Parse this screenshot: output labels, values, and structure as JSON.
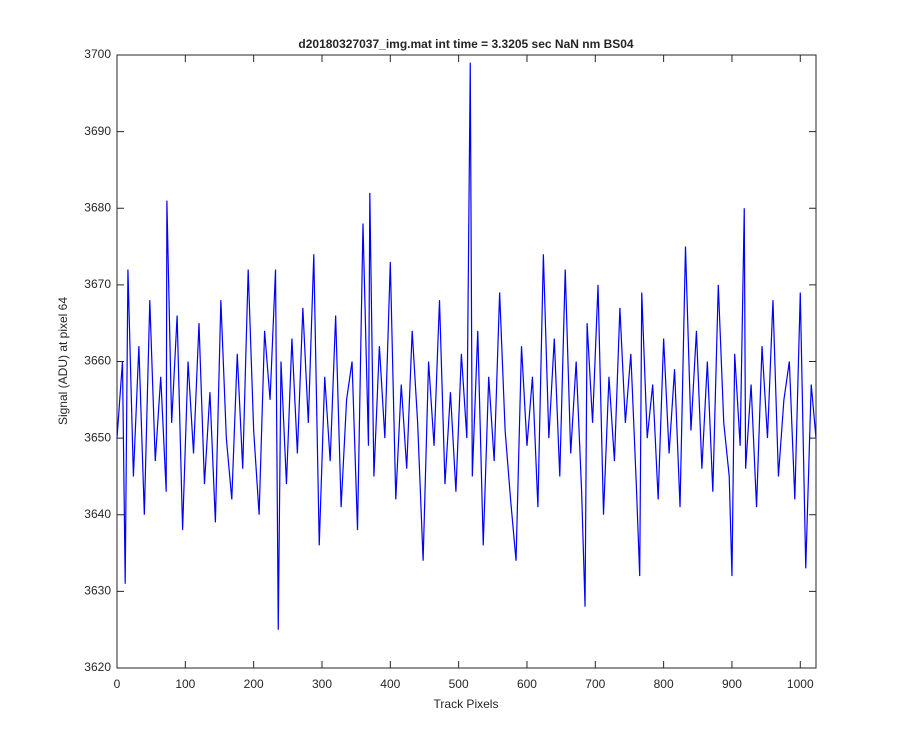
{
  "chart_data": {
    "type": "line",
    "title": "d20180327037_img.mat int time = 3.3205 sec  NaN nm BS04",
    "xlabel": "Track Pixels",
    "ylabel": "Signal (ADU) at pixel 64",
    "xlim": [
      0,
      1023
    ],
    "ylim": [
      3620,
      3700
    ],
    "xticks": [
      0,
      100,
      200,
      300,
      400,
      500,
      600,
      700,
      800,
      900,
      1000
    ],
    "yticks": [
      3620,
      3630,
      3640,
      3650,
      3660,
      3670,
      3680,
      3690,
      3700
    ],
    "grid": false,
    "x": [
      0,
      8,
      12,
      16,
      24,
      32,
      40,
      48,
      56,
      64,
      72,
      73,
      80,
      88,
      96,
      104,
      112,
      120,
      128,
      136,
      144,
      152,
      160,
      168,
      176,
      184,
      192,
      200,
      208,
      216,
      224,
      232,
      236,
      240,
      248,
      256,
      264,
      272,
      280,
      288,
      296,
      304,
      312,
      320,
      328,
      336,
      344,
      352,
      360,
      368,
      370,
      376,
      384,
      392,
      400,
      408,
      416,
      424,
      432,
      440,
      448,
      456,
      464,
      472,
      480,
      488,
      496,
      504,
      512,
      517,
      520,
      528,
      536,
      544,
      552,
      560,
      568,
      576,
      584,
      592,
      600,
      608,
      616,
      624,
      632,
      640,
      648,
      656,
      664,
      672,
      680,
      685,
      688,
      696,
      704,
      712,
      720,
      728,
      736,
      744,
      752,
      760,
      765,
      768,
      776,
      784,
      792,
      800,
      808,
      816,
      824,
      832,
      840,
      848,
      856,
      864,
      872,
      880,
      888,
      896,
      900,
      904,
      912,
      918,
      920,
      928,
      936,
      944,
      952,
      960,
      968,
      976,
      984,
      992,
      1000,
      1008,
      1016,
      1023
    ],
    "series": [
      {
        "name": "Signal",
        "color": "#0000ff",
        "values": [
          3650,
          3660,
          3631,
          3672,
          3645,
          3662,
          3640,
          3668,
          3647,
          3658,
          3643,
          3681,
          3652,
          3666,
          3638,
          3660,
          3648,
          3665,
          3644,
          3656,
          3639,
          3668,
          3650,
          3642,
          3661,
          3646,
          3672,
          3651,
          3640,
          3664,
          3655,
          3672,
          3625,
          3660,
          3644,
          3663,
          3648,
          3667,
          3652,
          3674,
          3636,
          3658,
          3647,
          3666,
          3641,
          3655,
          3660,
          3638,
          3678,
          3649,
          3682,
          3645,
          3662,
          3650,
          3673,
          3642,
          3657,
          3646,
          3664,
          3652,
          3634,
          3660,
          3649,
          3668,
          3644,
          3656,
          3643,
          3661,
          3650,
          3699,
          3645,
          3664,
          3636,
          3658,
          3647,
          3669,
          3651,
          3642,
          3634,
          3662,
          3649,
          3658,
          3641,
          3674,
          3650,
          3663,
          3645,
          3672,
          3648,
          3660,
          3643,
          3628,
          3665,
          3652,
          3670,
          3640,
          3658,
          3647,
          3667,
          3652,
          3661,
          3644,
          3632,
          3669,
          3650,
          3657,
          3642,
          3663,
          3648,
          3659,
          3641,
          3675,
          3651,
          3664,
          3646,
          3660,
          3643,
          3670,
          3652,
          3645,
          3632,
          3661,
          3649,
          3680,
          3646,
          3657,
          3641,
          3662,
          3650,
          3668,
          3645,
          3655,
          3660,
          3642,
          3669,
          3633,
          3657,
          3650
        ]
      }
    ]
  }
}
